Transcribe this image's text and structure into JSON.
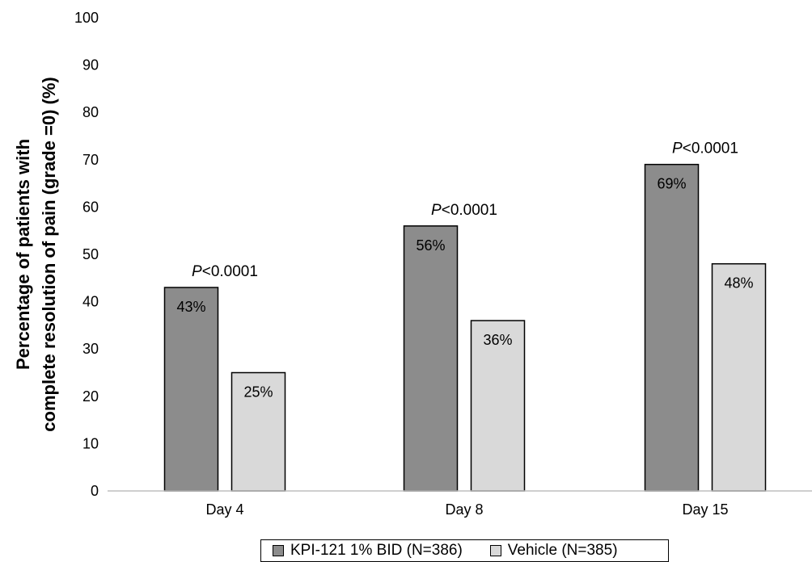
{
  "chart_data": {
    "type": "bar",
    "categories": [
      "Day 4",
      "Day 8",
      "Day 15"
    ],
    "series": [
      {
        "name": "KPI-121 1% BID (N=386)",
        "values": [
          43,
          56,
          69
        ],
        "labels": [
          "43%",
          "56%",
          "69%"
        ],
        "color": "#8c8c8c"
      },
      {
        "name": "Vehicle (N=385)",
        "values": [
          25,
          36,
          48
        ],
        "labels": [
          "25%",
          "36%",
          "48%"
        ],
        "color": "#d9d9d9"
      }
    ],
    "annotations": [
      {
        "category": "Day 4",
        "italic": "P",
        "text": "<0.0001"
      },
      {
        "category": "Day 8",
        "italic": "P",
        "text": "<0.0001"
      },
      {
        "category": "Day 15",
        "italic": "P",
        "text": "<0.0001"
      }
    ],
    "ylabel_lines": [
      "Percentage of patients with",
      "complete resolution of pain (grade =0) (%)"
    ],
    "xlabel": "",
    "ylim": [
      0,
      100
    ],
    "yticks": [
      0,
      10,
      20,
      30,
      40,
      50,
      60,
      70,
      80,
      90,
      100
    ],
    "grid": false,
    "legend_position": "bottom"
  }
}
